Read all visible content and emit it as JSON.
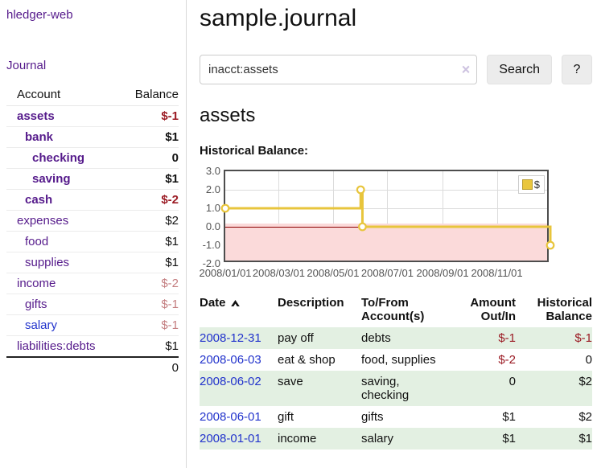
{
  "colors": {
    "purple_link": "#551a8b",
    "blue_link": "#2233cc",
    "negative_strong": "#9b1b24",
    "negative_soft": "#c47e80",
    "row_green": "#e3f0e2",
    "chart_line": "#e8c53c",
    "chart_negative_region": "#fbdada",
    "chart_zero_line": "#8b0000"
  },
  "sidebar": {
    "app_title": "hledger-web",
    "journal_link": "Journal",
    "accounts_table": {
      "headers": {
        "account": "Account",
        "balance": "Balance"
      },
      "rows": [
        {
          "name": "assets",
          "balance": "$-1",
          "level": 1,
          "bold": true,
          "balance_color": "neg-strong"
        },
        {
          "name": "bank",
          "balance": "$1",
          "level": 2,
          "bold": true,
          "balance_color": "default"
        },
        {
          "name": "checking",
          "balance": "0",
          "level": 3,
          "bold": true,
          "balance_color": "default"
        },
        {
          "name": "saving",
          "balance": "$1",
          "level": 3,
          "bold": true,
          "balance_color": "default"
        },
        {
          "name": "cash",
          "balance": "$-2",
          "level": 2,
          "bold": true,
          "balance_color": "neg-strong"
        },
        {
          "name": "expenses",
          "balance": "$2",
          "level": 1,
          "bold": false,
          "balance_color": "default"
        },
        {
          "name": "food",
          "balance": "$1",
          "level": 2,
          "bold": false,
          "balance_color": "default"
        },
        {
          "name": "supplies",
          "balance": "$1",
          "level": 2,
          "bold": false,
          "balance_color": "default"
        },
        {
          "name": "income",
          "balance": "$-2",
          "level": 1,
          "bold": false,
          "balance_color": "neg-soft"
        },
        {
          "name": "gifts",
          "balance": "$-1",
          "level": 2,
          "bold": false,
          "balance_color": "neg-soft"
        },
        {
          "name": "salary",
          "balance": "$-1",
          "level": 2,
          "bold": false,
          "balance_color": "neg-soft",
          "link_color": "blue"
        },
        {
          "name": "liabilities:debts",
          "balance": "$1",
          "level": 1,
          "bold": false,
          "balance_color": "default"
        }
      ],
      "total": "0"
    }
  },
  "main": {
    "title": "sample.journal",
    "search": {
      "value": "inacct:assets",
      "clear_icon": "×",
      "search_label": "Search",
      "help_label": "?"
    },
    "account_heading": "assets",
    "chart_heading": "Historical Balance:"
  },
  "chart_data": {
    "type": "line",
    "step": true,
    "title": "Historical Balance:",
    "x_range": [
      "2008-01-01",
      "2008-12-31"
    ],
    "ylim": [
      -2,
      3
    ],
    "y_ticks": [
      "3.0",
      "2.0",
      "1.0",
      "0.0",
      "-1.0",
      "-2.0"
    ],
    "x_ticks": [
      "2008/01/01",
      "2008/03/01",
      "2008/05/01",
      "2008/07/01",
      "2008/09/01",
      "2008/11/01"
    ],
    "grid": true,
    "legend_position": "top-right",
    "series": [
      {
        "name": "$",
        "points": [
          [
            "2008-01-01",
            1
          ],
          [
            "2008-06-01",
            2
          ],
          [
            "2008-06-03",
            0
          ],
          [
            "2008-12-31",
            -1
          ]
        ]
      }
    ]
  },
  "register": {
    "headers": [
      {
        "label": "Date",
        "sorted": "asc"
      },
      {
        "label": "Description"
      },
      {
        "label": "To/From Account(s)"
      },
      {
        "label": "Amount Out/In",
        "align": "right"
      },
      {
        "label": "Historical Balance",
        "align": "right"
      }
    ],
    "rows": [
      {
        "date": "2008-12-31",
        "description": "pay off",
        "accounts": "debts",
        "amount": "$-1",
        "amount_negative": true,
        "balance": "$-1",
        "balance_negative": true
      },
      {
        "date": "2008-06-03",
        "description": "eat & shop",
        "accounts": "food, supplies",
        "amount": "$-2",
        "amount_negative": true,
        "balance": "0",
        "balance_negative": false
      },
      {
        "date": "2008-06-02",
        "description": "save",
        "accounts": "saving, checking",
        "amount": "0",
        "amount_negative": false,
        "balance": "$2",
        "balance_negative": false
      },
      {
        "date": "2008-06-01",
        "description": "gift",
        "accounts": "gifts",
        "amount": "$1",
        "amount_negative": false,
        "balance": "$2",
        "balance_negative": false
      },
      {
        "date": "2008-01-01",
        "description": "income",
        "accounts": "salary",
        "amount": "$1",
        "amount_negative": false,
        "balance": "$1",
        "balance_negative": false
      }
    ]
  }
}
